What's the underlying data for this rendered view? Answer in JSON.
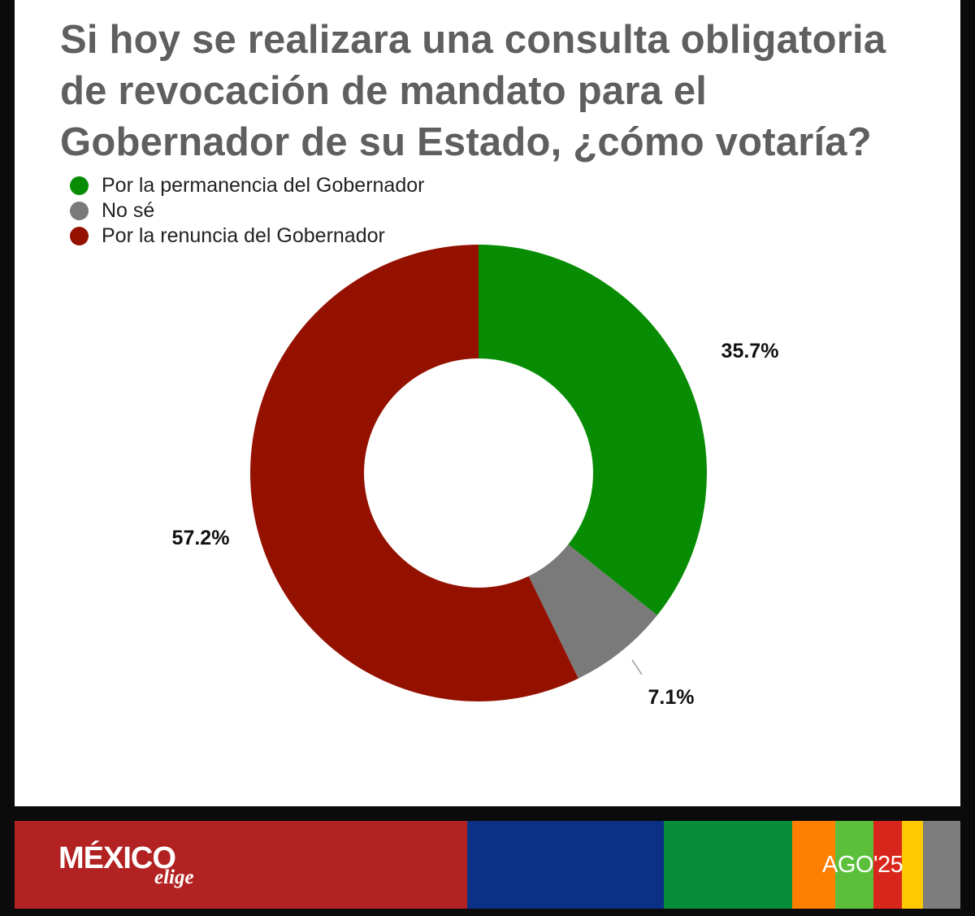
{
  "title": "Si hoy se realizara una consulta obligatoria de revocación de mandato para el Gobernador de su Estado, ¿cómo votaría?",
  "chart_data": {
    "type": "pie",
    "donut": true,
    "title": "Si hoy se realizara una consulta obligatoria de revocación de mandato para el Gobernador de su Estado, ¿cómo votaría?",
    "legend_position": "top-left",
    "series": [
      {
        "name": "Por la permanencia del Gobernador",
        "value": 35.7,
        "label": "35.7%",
        "color": "#078c03"
      },
      {
        "name": "No sé",
        "value": 7.1,
        "label": "7.1%",
        "color": "#7a7a7a"
      },
      {
        "name": "Por la renuncia del Gobernador",
        "value": 57.2,
        "label": "57.2%",
        "color": "#941100"
      }
    ]
  },
  "footer": {
    "brand": "MÉXICO",
    "brand_sub": "elige",
    "date": "AGO'25",
    "band_colors": [
      "#b22222",
      "#0a3185",
      "#078c3c",
      "#ff7f00",
      "#5cbf3b",
      "#d9261c",
      "#ffc800",
      "#7d7d7d"
    ]
  }
}
